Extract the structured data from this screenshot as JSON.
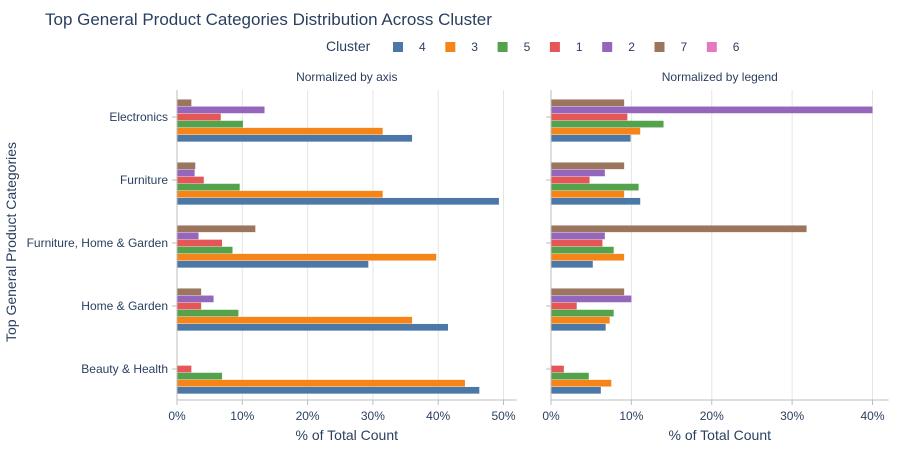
{
  "chart_data": {
    "type": "bar",
    "orientation": "horizontal",
    "title": "Top General Product Categories Distribution Across Cluster",
    "ylabel": "Top General Product Categories",
    "legend": {
      "title": "Cluster",
      "entries": [
        "4",
        "3",
        "5",
        "1",
        "2",
        "7",
        "6"
      ],
      "placement": "top-center"
    },
    "colors": {
      "4": "#4c78a8",
      "3": "#f58518",
      "5": "#54a24b",
      "1": "#e45756",
      "2": "#9467bd",
      "7": "#9c755f",
      "6": "#e377c2"
    },
    "categories": [
      "Electronics",
      "Furniture",
      "Furniture, Home & Garden",
      "Home & Garden",
      "Beauty & Health"
    ],
    "panels": [
      {
        "subtitle": "Normalized by axis",
        "xlabel": "% of Total Count",
        "xlim": [
          0,
          52
        ],
        "xticks": [
          0,
          10,
          20,
          30,
          40,
          50
        ],
        "xtick_labels": [
          "0%",
          "10%",
          "20%",
          "30%",
          "40%",
          "50%"
        ],
        "series": [
          {
            "name": "4",
            "values": [
              36.0,
              49.3,
              29.3,
              41.5,
              46.3
            ]
          },
          {
            "name": "3",
            "values": [
              31.5,
              31.5,
              39.7,
              36.0,
              44.1
            ]
          },
          {
            "name": "5",
            "values": [
              10.1,
              9.6,
              8.5,
              9.4,
              6.9
            ]
          },
          {
            "name": "1",
            "values": [
              6.7,
              4.1,
              6.9,
              3.7,
              2.2
            ]
          },
          {
            "name": "2",
            "values": [
              13.4,
              2.7,
              3.3,
              5.6,
              0
            ]
          },
          {
            "name": "7",
            "values": [
              2.2,
              2.8,
              12.0,
              3.7,
              0
            ]
          },
          {
            "name": "6",
            "values": [
              0,
              0,
              0,
              0,
              0
            ]
          }
        ]
      },
      {
        "subtitle": "Normalized by legend",
        "xlabel": "% of Total Count",
        "xlim": [
          0,
          42
        ],
        "xticks": [
          0,
          10,
          20,
          30,
          40
        ],
        "xtick_labels": [
          "0%",
          "10%",
          "20%",
          "30%",
          "40%"
        ],
        "series": [
          {
            "name": "4",
            "values": [
              9.9,
              11.1,
              5.2,
              6.8,
              6.2
            ]
          },
          {
            "name": "3",
            "values": [
              11.1,
              9.1,
              9.1,
              7.3,
              7.5
            ]
          },
          {
            "name": "5",
            "values": [
              14.0,
              10.9,
              7.8,
              7.8,
              4.7
            ]
          },
          {
            "name": "1",
            "values": [
              9.5,
              4.8,
              6.4,
              3.2,
              1.6
            ]
          },
          {
            "name": "2",
            "values": [
              40.0,
              6.7,
              6.7,
              10.0,
              0
            ]
          },
          {
            "name": "7",
            "values": [
              9.1,
              9.1,
              31.8,
              9.1,
              0
            ]
          },
          {
            "name": "6",
            "values": [
              0,
              0,
              0,
              0,
              0
            ]
          }
        ]
      }
    ]
  }
}
